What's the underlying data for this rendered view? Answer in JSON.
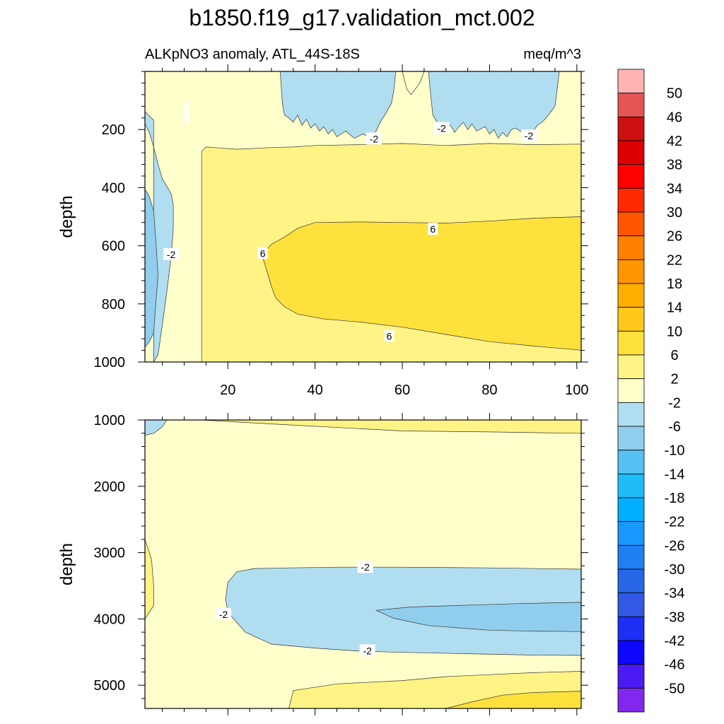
{
  "chart_data": {
    "type": "contour",
    "title": "b1850.f19_g17.validation_mct.002",
    "subtitle_left": "ALKpNO3 anomaly, ATL_44S-18S",
    "subtitle_right": "meq/m^3",
    "panels": [
      {
        "name": "upper",
        "ylabel": "depth",
        "xlim": [
          1,
          101
        ],
        "ylim_top": 0,
        "ylim_bottom": 1000,
        "xticks": [
          20,
          40,
          60,
          80,
          100
        ],
        "xtick_labels": [
          "20",
          "40",
          "60",
          "80",
          "100"
        ],
        "yticks": [
          200,
          400,
          600,
          800,
          1000
        ],
        "ytick_labels": [
          "200",
          "400",
          "600",
          "800",
          "1000"
        ],
        "contour_labels": [
          {
            "text": "-2",
            "x": 53.5,
            "y": 232
          },
          {
            "text": "-2",
            "x": 69,
            "y": 196
          },
          {
            "text": "-2",
            "x": 89,
            "y": 222
          },
          {
            "text": "-2",
            "x": 7,
            "y": 630
          },
          {
            "text": "6",
            "x": 28,
            "y": 626
          },
          {
            "text": "6",
            "x": 67,
            "y": 543
          },
          {
            "text": "6",
            "x": 57,
            "y": 911
          }
        ]
      },
      {
        "name": "lower",
        "ylabel": "depth",
        "xlim": [
          1,
          101
        ],
        "ylim_top": 1000,
        "ylim_bottom": 5350,
        "xticks": [
          20,
          40,
          60,
          80,
          100
        ],
        "xtick_labels": [
          "",
          "",
          "",
          "",
          ""
        ],
        "yticks": [
          1000,
          2000,
          3000,
          4000,
          5000
        ],
        "ytick_labels": [
          "1000",
          "2000",
          "3000",
          "4000",
          "5000"
        ],
        "contour_labels": [
          {
            "text": "-2",
            "x": 51.5,
            "y": 3220
          },
          {
            "text": "-2",
            "x": 19,
            "y": 3930
          },
          {
            "text": "-2",
            "x": 52,
            "y": 4480
          }
        ]
      }
    ],
    "colorbar": {
      "levels": [
        "50",
        "46",
        "42",
        "38",
        "34",
        "30",
        "26",
        "22",
        "18",
        "14",
        "10",
        "6",
        "2",
        "-2",
        "-6",
        "-10",
        "-14",
        "-18",
        "-22",
        "-26",
        "-30",
        "-34",
        "-38",
        "-42",
        "-46",
        "-50"
      ],
      "colors_top_to_bottom": [
        "#FFB3B3",
        "#E45555",
        "#CD1010",
        "#DE0000",
        "#FE0000",
        "#FF2A00",
        "#FF5500",
        "#FF7F00",
        "#FF9600",
        "#FFAF00",
        "#FFC81A",
        "#FFE13D",
        "#FFF385",
        "#FFFFCB",
        "#B1DDF1",
        "#91CEEE",
        "#56C1F3",
        "#1EBDF9",
        "#00B0FF",
        "#1A96FF",
        "#1F80F4",
        "#2866E8",
        "#3159E4",
        "#1D2FF5",
        "#0D07FC",
        "#4B1AF4",
        "#8127EE"
      ]
    }
  }
}
